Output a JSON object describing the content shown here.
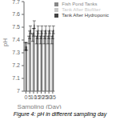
{
  "chart_data": {
    "type": "bar",
    "title": "Figure 4: pH in different sampling day",
    "xlabel": "Sampling (Day)",
    "ylabel": "pH",
    "categories": [
      0,
      5,
      10,
      15,
      20,
      25,
      30,
      35
    ],
    "series": [
      {
        "name": "Tank After Biofilter",
        "color": "#c8c8c8",
        "values": [
          7.35,
          7.4,
          7.42,
          7.4,
          7.4,
          7.4,
          7.4,
          7.4
        ],
        "errors": [
          0.03,
          0.03,
          0.03,
          0.03,
          0.03,
          0.03,
          0.03,
          0.03
        ]
      },
      {
        "name": "Fish Pond Tanks",
        "color": "#888888",
        "values": [
          7.35,
          7.44,
          7.46,
          7.44,
          7.44,
          7.44,
          7.44,
          7.44
        ],
        "errors": [
          0.03,
          0.03,
          0.03,
          0.03,
          0.03,
          0.03,
          0.03,
          0.03
        ]
      },
      {
        "name": "Tank After Hydroponic",
        "color": "#444444",
        "values": [
          7.35,
          7.48,
          7.52,
          7.48,
          7.48,
          7.48,
          7.48,
          7.48
        ],
        "errors": [
          0.03,
          0.03,
          0.03,
          0.03,
          0.03,
          0.03,
          0.03,
          0.03
        ]
      }
    ],
    "ylim": [
      7.0,
      7.7
    ],
    "yticks": [
      7.0,
      7.1,
      7.2,
      7.3,
      7.4,
      7.5,
      7.6,
      7.7
    ],
    "grid": false,
    "legend": "upper right"
  }
}
